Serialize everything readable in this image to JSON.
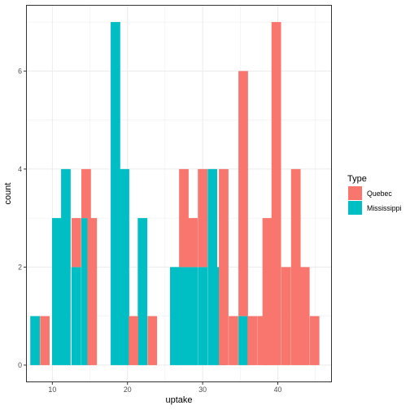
{
  "chart_data": {
    "type": "bar",
    "subtype": "stacked-histogram",
    "xlabel": "uptake",
    "ylabel": "count",
    "xlim": [
      6.5,
      47.2
    ],
    "ylim": [
      -0.35,
      7.35
    ],
    "x_ticks": [
      10,
      20,
      30,
      40
    ],
    "y_ticks": [
      0,
      2,
      4,
      6
    ],
    "bin_width": 1.272,
    "grid": true,
    "legend": {
      "title": "Type",
      "position": "right"
    },
    "series": [
      {
        "name": "Quebec",
        "color": "#F8766D",
        "bins": [
          {
            "x": 9.0,
            "count": 1
          },
          {
            "x": 13.2,
            "count": 3
          },
          {
            "x": 14.5,
            "count": 4
          },
          {
            "x": 15.3,
            "count": 3
          },
          {
            "x": 20.8,
            "count": 1
          },
          {
            "x": 23.3,
            "count": 1
          },
          {
            "x": 27.5,
            "count": 4
          },
          {
            "x": 28.7,
            "count": 3
          },
          {
            "x": 30.0,
            "count": 4
          },
          {
            "x": 32.8,
            "count": 4
          },
          {
            "x": 34.1,
            "count": 1
          },
          {
            "x": 35.4,
            "count": 6
          },
          {
            "x": 36.6,
            "count": 1
          },
          {
            "x": 37.9,
            "count": 1
          },
          {
            "x": 38.6,
            "count": 3
          },
          {
            "x": 39.8,
            "count": 7
          },
          {
            "x": 41.1,
            "count": 2
          },
          {
            "x": 42.4,
            "count": 4
          },
          {
            "x": 43.6,
            "count": 2
          },
          {
            "x": 44.9,
            "count": 1
          }
        ]
      },
      {
        "name": "Mississippi",
        "color": "#00BFC4",
        "bins": [
          {
            "x": 7.7,
            "count": 1
          },
          {
            "x": 10.6,
            "count": 3
          },
          {
            "x": 11.8,
            "count": 4
          },
          {
            "x": 13.2,
            "count": 2
          },
          {
            "x": 14.5,
            "count": 3
          },
          {
            "x": 18.4,
            "count": 7
          },
          {
            "x": 19.6,
            "count": 4
          },
          {
            "x": 22.0,
            "count": 3
          },
          {
            "x": 26.3,
            "count": 2
          },
          {
            "x": 27.5,
            "count": 2
          },
          {
            "x": 28.7,
            "count": 2
          },
          {
            "x": 30.0,
            "count": 2
          },
          {
            "x": 31.3,
            "count": 4
          },
          {
            "x": 32.5,
            "count": 2
          },
          {
            "x": 35.4,
            "count": 1
          }
        ]
      }
    ]
  }
}
